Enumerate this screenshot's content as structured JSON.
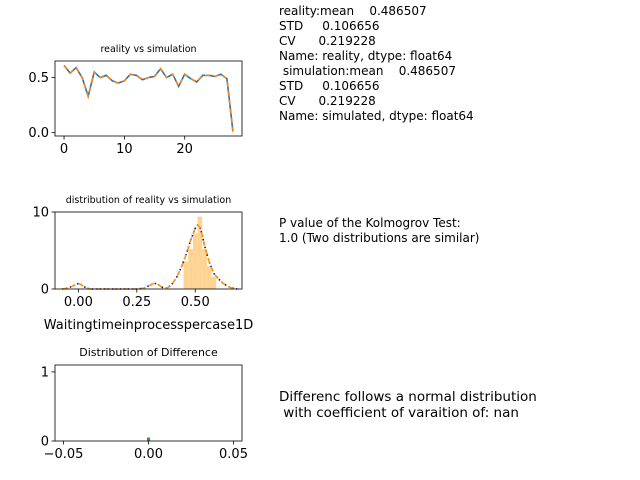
{
  "chart_data": [
    {
      "type": "line",
      "title": "reality vs simulation",
      "xlabel": "",
      "ylabel": "",
      "xlim": [
        -1.5,
        29.5
      ],
      "ylim": [
        -0.03,
        0.65
      ],
      "xticks": [
        0,
        10,
        20
      ],
      "yticks": [
        0.0,
        0.5
      ],
      "ytick_labels": [
        "0.0",
        "0.5"
      ],
      "x": [
        0,
        1,
        2,
        3,
        4,
        5,
        6,
        7,
        8,
        9,
        10,
        11,
        12,
        13,
        14,
        15,
        16,
        17,
        18,
        19,
        20,
        21,
        22,
        23,
        24,
        25,
        26,
        27,
        28
      ],
      "series": [
        {
          "name": "reality",
          "color": "#1f77b4",
          "dash": "solid",
          "values": [
            0.61,
            0.54,
            0.59,
            0.5,
            0.33,
            0.55,
            0.5,
            0.52,
            0.47,
            0.45,
            0.47,
            0.53,
            0.52,
            0.48,
            0.5,
            0.51,
            0.58,
            0.5,
            0.53,
            0.42,
            0.53,
            0.49,
            0.46,
            0.52,
            0.52,
            0.51,
            0.53,
            0.49,
            0.01
          ]
        },
        {
          "name": "simulated",
          "color": "#ff7f0e",
          "dash": "dashed",
          "values": [
            0.61,
            0.54,
            0.59,
            0.5,
            0.33,
            0.55,
            0.5,
            0.52,
            0.47,
            0.45,
            0.47,
            0.53,
            0.52,
            0.48,
            0.5,
            0.51,
            0.58,
            0.5,
            0.53,
            0.42,
            0.53,
            0.49,
            0.46,
            0.52,
            0.52,
            0.51,
            0.53,
            0.49,
            0.01
          ]
        }
      ]
    },
    {
      "type": "area",
      "title": "distribution of reality vs simulation",
      "xlabel": "Waitingtimeinprocesspercase1D",
      "ylabel": "",
      "xlim": [
        -0.1,
        0.7
      ],
      "ylim": [
        0,
        10
      ],
      "xticks": [
        0.0,
        0.25,
        0.5
      ],
      "xtick_labels": [
        "0.00",
        "0.25",
        "0.50"
      ],
      "yticks": [
        0,
        10
      ],
      "histogram": {
        "color": "#ffcc80",
        "bins": [
          {
            "x0": 0.45,
            "x1": 0.47,
            "height": 3.6
          },
          {
            "x0": 0.47,
            "x1": 0.49,
            "height": 5.2
          },
          {
            "x0": 0.49,
            "x1": 0.51,
            "height": 7.2
          },
          {
            "x0": 0.51,
            "x1": 0.53,
            "height": 9.4
          },
          {
            "x0": 0.53,
            "x1": 0.55,
            "height": 5.2
          },
          {
            "x0": 0.55,
            "x1": 0.57,
            "height": 3.0
          },
          {
            "x0": 0.57,
            "x1": 0.59,
            "height": 1.6
          }
        ]
      },
      "density_x": [
        -0.07,
        -0.05,
        -0.03,
        -0.01,
        0.0,
        0.01,
        0.03,
        0.05,
        0.1,
        0.15,
        0.2,
        0.25,
        0.28,
        0.3,
        0.32,
        0.33,
        0.34,
        0.36,
        0.38,
        0.4,
        0.42,
        0.44,
        0.46,
        0.48,
        0.5,
        0.51,
        0.52,
        0.53,
        0.54,
        0.56,
        0.58,
        0.6,
        0.62,
        0.65,
        0.68
      ],
      "series": [
        {
          "name": "reality",
          "color": "#0000cc",
          "dash": "dotted",
          "values": [
            0.0,
            0.1,
            0.3,
            0.6,
            0.7,
            0.6,
            0.2,
            0.0,
            0.0,
            0.0,
            0.0,
            0.0,
            0.1,
            0.4,
            0.7,
            0.7,
            0.6,
            0.2,
            0.1,
            0.6,
            1.5,
            2.8,
            4.4,
            6.3,
            7.9,
            8.3,
            8.0,
            7.0,
            5.6,
            3.5,
            2.0,
            1.3,
            0.7,
            0.2,
            0.0
          ]
        },
        {
          "name": "simulated",
          "color": "#ff9900",
          "dash": "dashed",
          "values": [
            0.0,
            0.1,
            0.3,
            0.6,
            0.7,
            0.6,
            0.2,
            0.0,
            0.0,
            0.0,
            0.0,
            0.0,
            0.1,
            0.4,
            0.7,
            0.7,
            0.6,
            0.2,
            0.1,
            0.6,
            1.5,
            2.8,
            4.4,
            6.3,
            7.9,
            8.3,
            8.0,
            7.0,
            5.6,
            3.5,
            2.0,
            1.3,
            0.7,
            0.2,
            0.0
          ]
        }
      ]
    },
    {
      "type": "bar",
      "title": "Distribution of Difference",
      "xlabel": "",
      "ylabel": "",
      "xlim": [
        -0.055,
        0.055
      ],
      "ylim": [
        0,
        1.1
      ],
      "xticks": [
        -0.05,
        0.0,
        0.05
      ],
      "xtick_labels": [
        "−0.05",
        "0.00",
        "0.05"
      ],
      "yticks": [
        0,
        1
      ],
      "bars": [
        {
          "x": 0.0,
          "height": 0.05,
          "color": "#2ca02c"
        }
      ]
    }
  ],
  "stats_top": "reality:mean    0.486507\nSTD     0.106656\nCV      0.219228\nName: reality, dtype: float64\n simulation:mean    0.486507\nSTD     0.106656\nCV      0.219228\nName: simulated, dtype: float64",
  "stats_mid": "P value of the Kolmogrov Test:\n1.0 (Two distributions are similar)",
  "stats_bot": "Differenc follows a normal distribution\n with coefficient of varaition of: nan"
}
